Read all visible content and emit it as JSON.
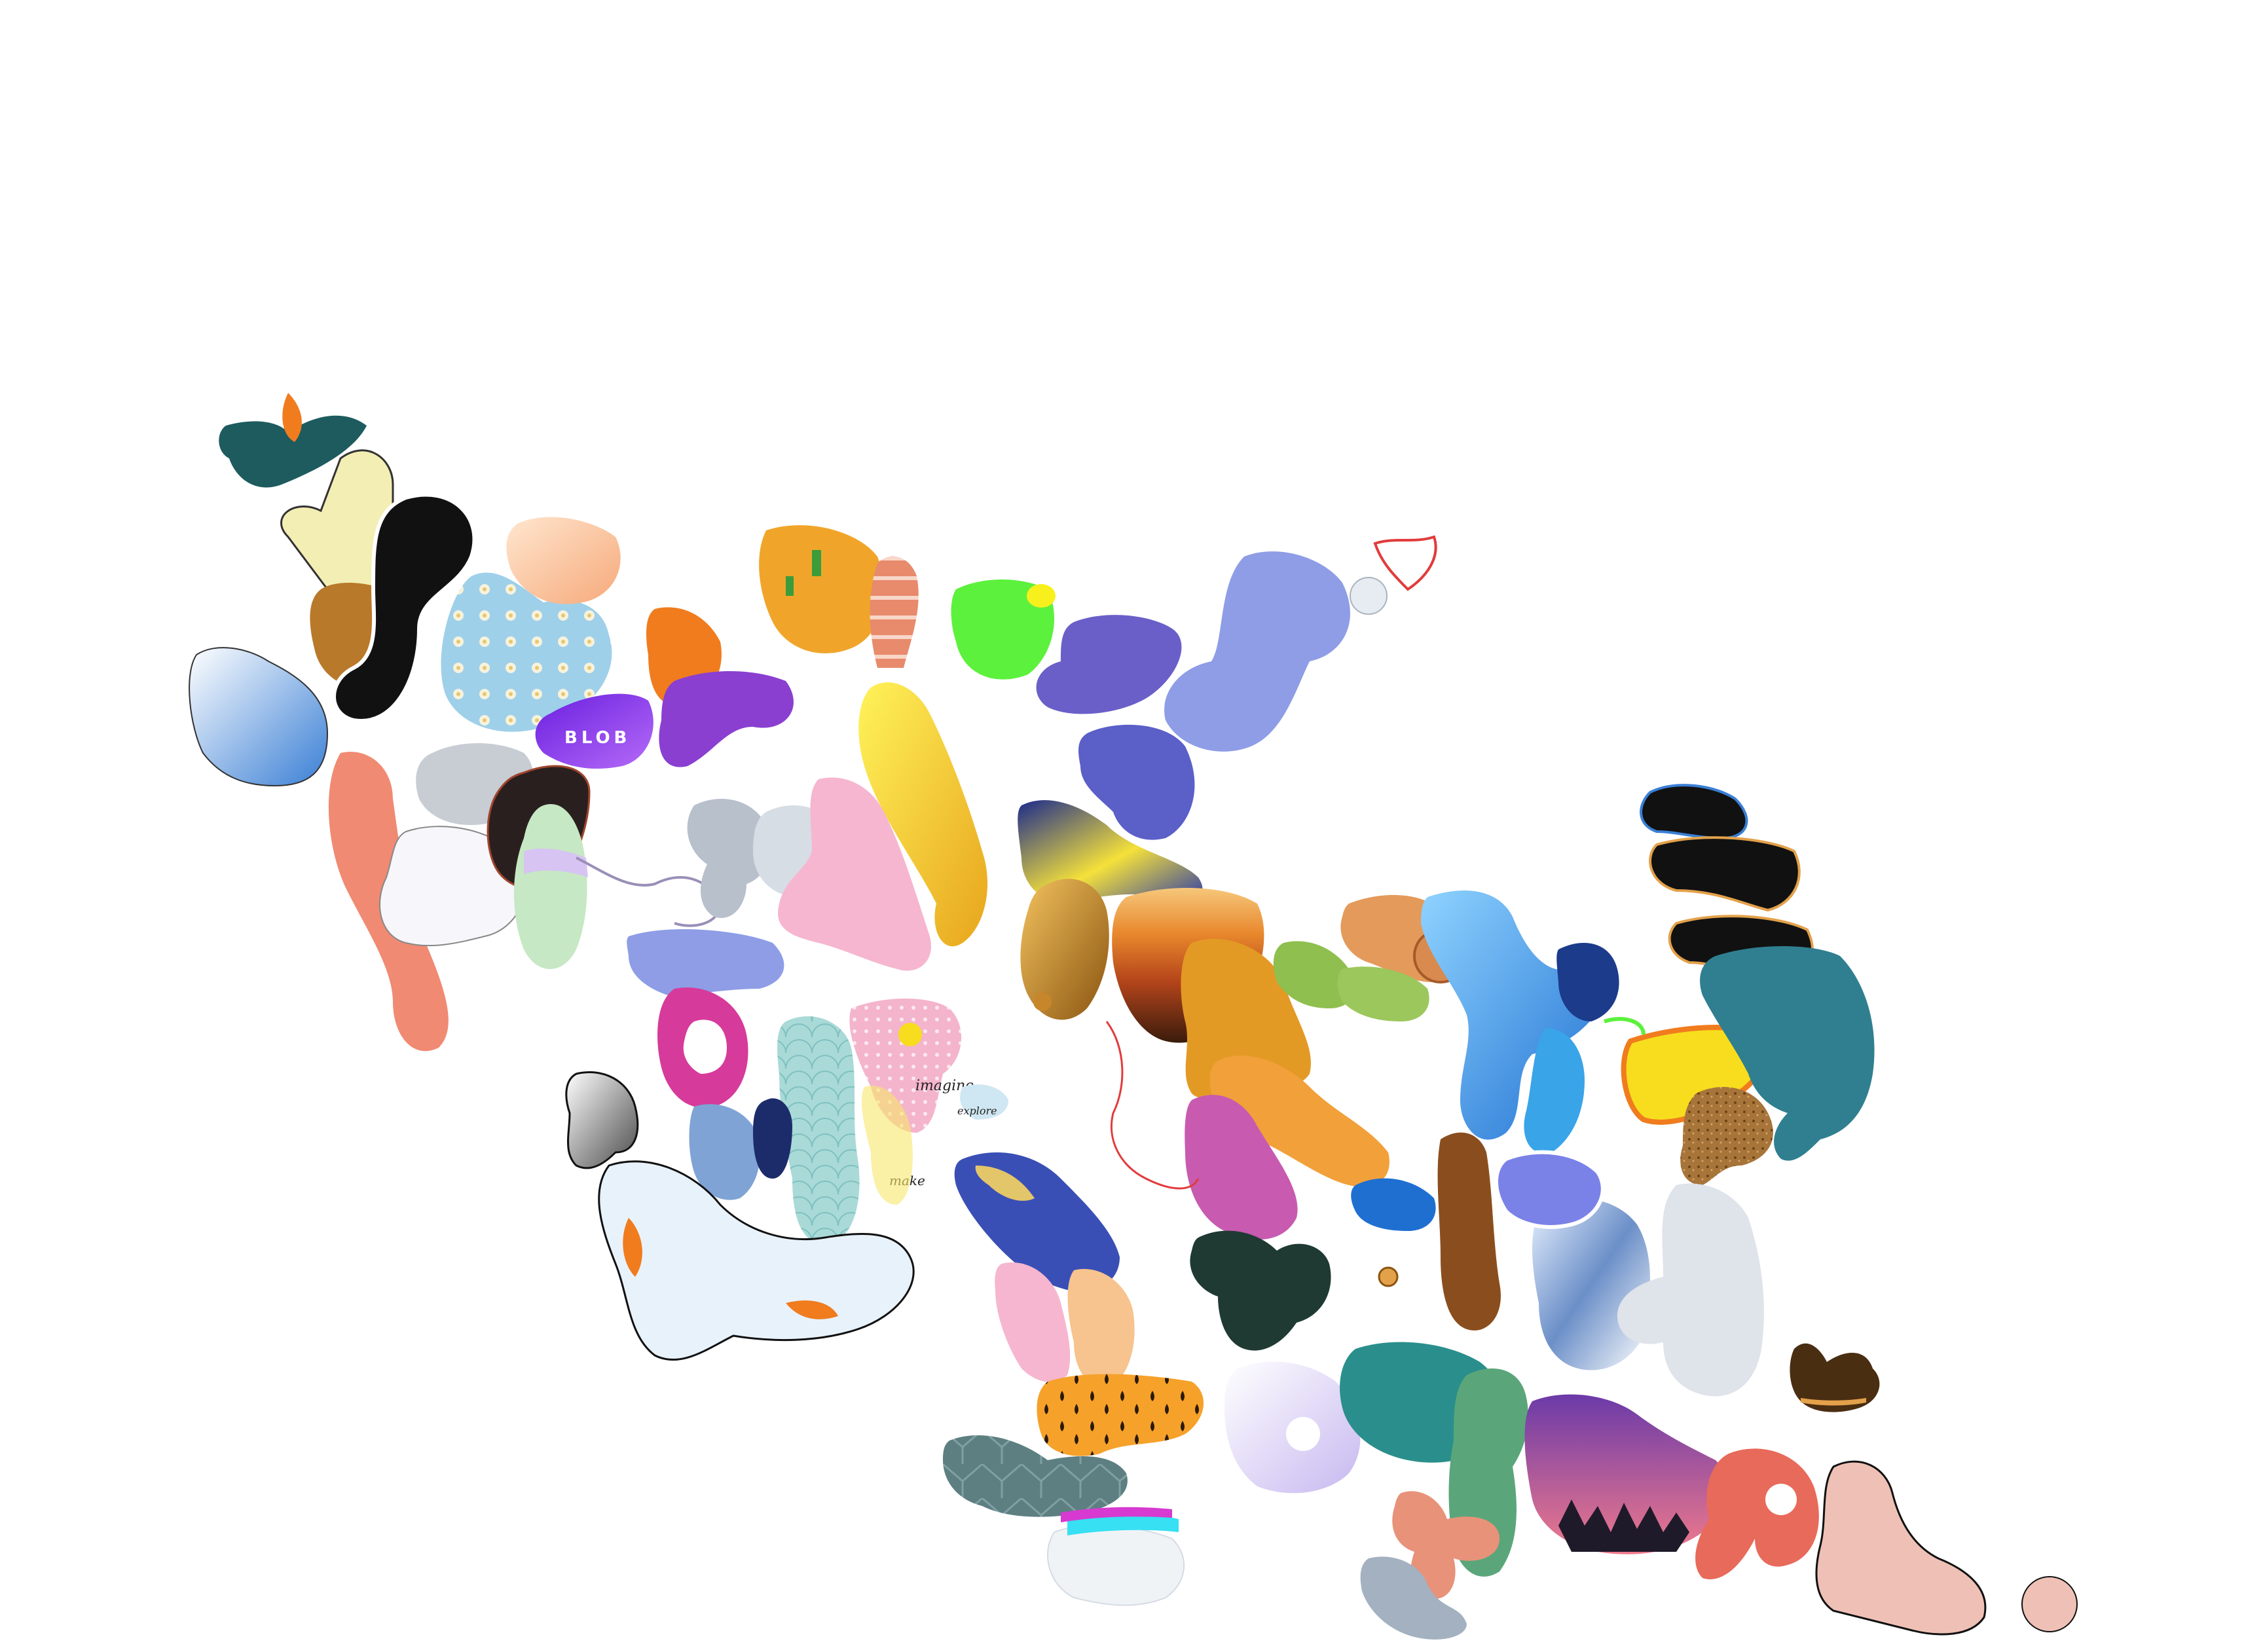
{
  "labels": {
    "blob": "BLOB",
    "imagine": "imagine",
    "explore": "explore",
    "make": "make"
  },
  "colors": {
    "background": "#ffffff",
    "teal": "#1d5b5e",
    "orange": "#f07c1e",
    "cream": "#f3eeb4",
    "wood": "#b9792a",
    "purple": "#7b2ff2",
    "yellow": "#f7dd1d",
    "green": "#5cf13c",
    "periwinkle": "#8e9de6",
    "pink": "#f6b6cf",
    "magenta": "#d63a9a",
    "skyblue": "#3aa4e8",
    "navy": "#1c2c6b",
    "brown": "#5a3a14",
    "salmon": "#f08a72",
    "gray": "#c8cdd4",
    "lavender": "#d9cff2",
    "darkgreen": "#1f3a33",
    "olive": "#8fbf4e",
    "gold": "#e39a25",
    "black": "#111111"
  },
  "icons": [
    "teal-flower-blob",
    "bandage-blob",
    "wood-grain-blob",
    "black-white-swirl-blob",
    "blue-gradient-blob",
    "floral-pattern-blob",
    "peach-glow-blob",
    "orange-fluid-blob",
    "purple-blob-label",
    "cactus-blob",
    "bacon-strip-blob",
    "yellow-drip-blob",
    "lime-green-blob",
    "galaxy-purple-blob",
    "periwinkle-swirl-blob",
    "red-outline-heart-blob",
    "coral-maze-blob",
    "line-faces-blob",
    "gray-geometric-blob",
    "dark-sparkle-blob",
    "pastel-striped-blob",
    "gray-wash-blob",
    "pink-wave-blob",
    "blue-text-blob",
    "yellow-navy-glow-blob",
    "gold-gradient-blob",
    "sunset-stripe-blob",
    "orange-duck-blob",
    "scroll-shell-blob",
    "sky-blue-blob",
    "black-stack-blob",
    "neon-outline-blob",
    "ocean-fish-blob",
    "cork-texture-blob",
    "magenta-target-blob",
    "fish-scale-blob",
    "pink-glitter-blob",
    "grayscale-gradient-blob",
    "koi-pond-blob",
    "space-hand-blob",
    "pink-hands-blob",
    "cheetah-spot-blob",
    "hex-pattern-blob",
    "snowy-mountain-blob",
    "dark-green-blob",
    "tree-trunk-blob",
    "chrome-swirl-blob",
    "world-map-blob",
    "astronaut-blob",
    "night-forest-blob",
    "lavender-sphere-blob",
    "brown-cat-blob",
    "peach-outline-blob"
  ]
}
